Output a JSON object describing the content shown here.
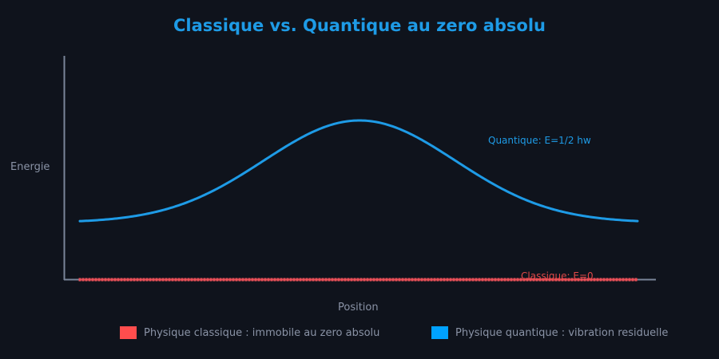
{
  "chart_data": {
    "type": "line",
    "title": "Classique vs. Quantique au zero absolu",
    "xlabel": "Position",
    "ylabel": "Energie",
    "grid": false,
    "legend_position": "bottom",
    "x_range": [
      0,
      1
    ],
    "series": [
      {
        "name": "Physique classique : immobile au zero absolu",
        "color": "#ff4d4d",
        "style": "dotted markers",
        "annotation": "Classique: E=0",
        "x": [
          0,
          0.1,
          0.2,
          0.3,
          0.4,
          0.5,
          0.6,
          0.7,
          0.8,
          0.9,
          1.0
        ],
        "values": [
          0,
          0,
          0,
          0,
          0,
          0,
          0,
          0,
          0,
          0,
          0
        ]
      },
      {
        "name": "Physique quantique : vibration residuelle",
        "color": "#1e9be6",
        "style": "solid",
        "annotation": "Quantique: E=1/2 hw",
        "x": [
          0,
          0.1,
          0.2,
          0.3,
          0.4,
          0.5,
          0.6,
          0.7,
          0.8,
          0.9,
          1.0
        ],
        "values": [
          0.25,
          0.27,
          0.34,
          0.48,
          0.63,
          0.7,
          0.63,
          0.48,
          0.34,
          0.27,
          0.25
        ]
      }
    ]
  },
  "title": "Classique vs. Quantique au zero absolu",
  "axes": {
    "xlabel": "Position",
    "ylabel": "Energie"
  },
  "annotations": {
    "quantum": "Quantique: E=1/2 hw",
    "classical": "Classique: E=0"
  },
  "legend": [
    {
      "label": "Physique classique : immobile au zero absolu",
      "color": "#ff4d4d"
    },
    {
      "label": "Physique quantique : vibration residuelle",
      "color": "#00a2ff"
    }
  ],
  "colors": {
    "background": "#0f131c",
    "axis": "#7a8599",
    "text_muted": "#8a93a6",
    "quantum": "#1e9be6",
    "classical": "#ff4d4d"
  }
}
